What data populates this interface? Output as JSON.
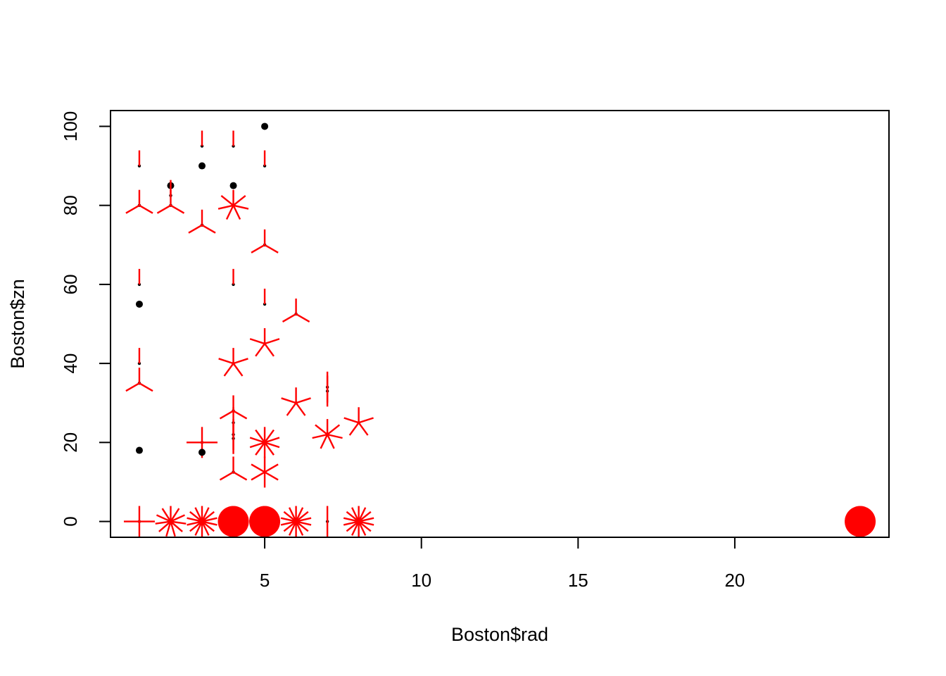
{
  "chart_data": {
    "type": "scatter",
    "title": "",
    "xlabel": "Boston$rad",
    "ylabel": "Boston$zn",
    "xlim": [
      0.08,
      24.92
    ],
    "ylim": [
      -4,
      104
    ],
    "x_ticks": [
      5,
      10,
      15,
      20
    ],
    "y_ticks": [
      0,
      20,
      40,
      60,
      80,
      100
    ],
    "grid": false,
    "legend": "none",
    "colors": {
      "points": "#000000",
      "sunflower": "#ff0000",
      "axes": "#000000",
      "background": "#ffffff"
    },
    "sunflowers": [
      {
        "x": 1,
        "y": 90,
        "count": 1
      },
      {
        "x": 1,
        "y": 80,
        "count": 3
      },
      {
        "x": 1,
        "y": 60,
        "count": 1
      },
      {
        "x": 1,
        "y": 55,
        "count": 1,
        "single": true
      },
      {
        "x": 1,
        "y": 40,
        "count": 1
      },
      {
        "x": 1,
        "y": 35,
        "count": 3
      },
      {
        "x": 1,
        "y": 18,
        "count": 1,
        "single": true
      },
      {
        "x": 1,
        "y": 0,
        "count": 4
      },
      {
        "x": 2,
        "y": 85,
        "count": 1,
        "single": true
      },
      {
        "x": 2,
        "y": 82.5,
        "count": 1
      },
      {
        "x": 2,
        "y": 80,
        "count": 3
      },
      {
        "x": 2,
        "y": 0,
        "count": 11
      },
      {
        "x": 3,
        "y": 95,
        "count": 1
      },
      {
        "x": 3,
        "y": 90,
        "count": 1,
        "single": true
      },
      {
        "x": 3,
        "y": 75,
        "count": 3
      },
      {
        "x": 3,
        "y": 20,
        "count": 4
      },
      {
        "x": 3,
        "y": 17.5,
        "count": 1,
        "single": true
      },
      {
        "x": 3,
        "y": 0,
        "count": 14
      },
      {
        "x": 4,
        "y": 95,
        "count": 1
      },
      {
        "x": 4,
        "y": 85,
        "count": 1,
        "single": true
      },
      {
        "x": 4,
        "y": 80,
        "count": 7
      },
      {
        "x": 4,
        "y": 60,
        "count": 1
      },
      {
        "x": 4,
        "y": 40,
        "count": 5
      },
      {
        "x": 4,
        "y": 28,
        "count": 3
      },
      {
        "x": 4,
        "y": 25,
        "count": 2
      },
      {
        "x": 4,
        "y": 22,
        "count": 2
      },
      {
        "x": 4,
        "y": 21,
        "count": 2
      },
      {
        "x": 4,
        "y": 12.5,
        "count": 3
      },
      {
        "x": 4,
        "y": 0,
        "count": 90
      },
      {
        "x": 5,
        "y": 100,
        "count": 1,
        "single": true
      },
      {
        "x": 5,
        "y": 90,
        "count": 1
      },
      {
        "x": 5,
        "y": 70,
        "count": 3
      },
      {
        "x": 5,
        "y": 55,
        "count": 1
      },
      {
        "x": 5,
        "y": 45,
        "count": 5
      },
      {
        "x": 5,
        "y": 20,
        "count": 10
      },
      {
        "x": 5,
        "y": 12.5,
        "count": 6
      },
      {
        "x": 5,
        "y": 0,
        "count": 90
      },
      {
        "x": 6,
        "y": 52.5,
        "count": 3
      },
      {
        "x": 6,
        "y": 30,
        "count": 5
      },
      {
        "x": 6,
        "y": 0,
        "count": 14
      },
      {
        "x": 7,
        "y": 34,
        "count": 2
      },
      {
        "x": 7,
        "y": 33,
        "count": 2
      },
      {
        "x": 7,
        "y": 22,
        "count": 7
      },
      {
        "x": 7,
        "y": 0,
        "count": 2
      },
      {
        "x": 8,
        "y": 25,
        "count": 5
      },
      {
        "x": 8,
        "y": 0,
        "count": 14
      },
      {
        "x": 24,
        "y": 0,
        "count": 132
      }
    ]
  }
}
